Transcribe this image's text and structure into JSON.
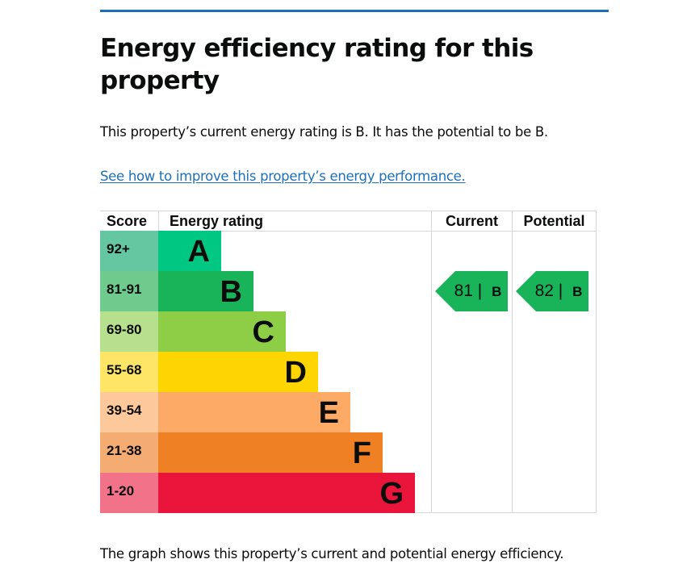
{
  "page": {
    "title": "Energy efficiency rating for this property",
    "summary": "This property’s current energy rating is B. It has the potential to be B.",
    "improve_link": "See how to improve this property’s energy performance.",
    "footnote": "The graph shows this property’s current and potential energy efficiency.",
    "accent_color": "#1d70b8"
  },
  "chart_data": {
    "type": "bar",
    "title": "Energy efficiency rating",
    "columns": [
      "Score",
      "Energy rating",
      "Current",
      "Potential"
    ],
    "bands": [
      {
        "letter": "A",
        "score": "92+",
        "color": "#00c781",
        "score_bg": "#64c7a2"
      },
      {
        "letter": "B",
        "score": "81-91",
        "color": "#19b459",
        "score_bg": "#6fcb8d"
      },
      {
        "letter": "C",
        "score": "69-80",
        "color": "#8dce46",
        "score_bg": "#b7e08e"
      },
      {
        "letter": "D",
        "score": "55-68",
        "color": "#ffd500",
        "score_bg": "#ffe566"
      },
      {
        "letter": "E",
        "score": "39-54",
        "color": "#fcaa65",
        "score_bg": "#fdc89a"
      },
      {
        "letter": "F",
        "score": "21-38",
        "color": "#ef8023",
        "score_bg": "#f4ac72"
      },
      {
        "letter": "G",
        "score": "1-20",
        "color": "#e9153b",
        "score_bg": "#f27389"
      }
    ],
    "current": {
      "value": 81,
      "band": "B",
      "color": "#19b459"
    },
    "potential": {
      "value": 82,
      "band": "B",
      "color": "#19b459"
    }
  }
}
